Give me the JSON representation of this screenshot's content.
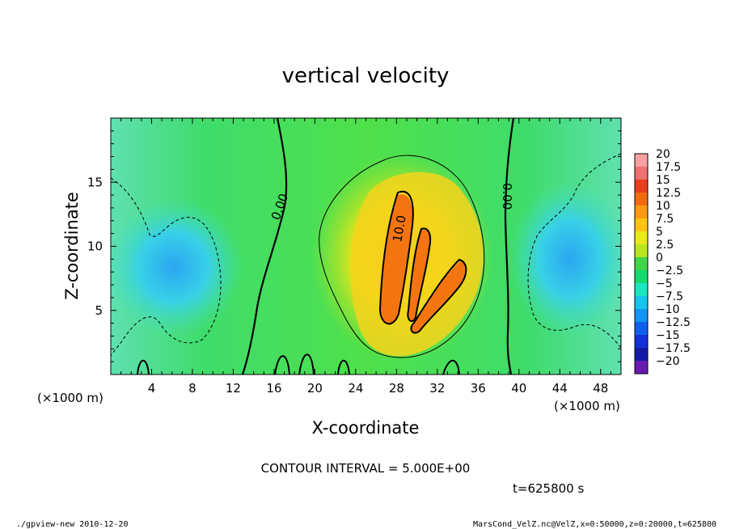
{
  "chart_data": {
    "type": "heatmap",
    "title": "vertical velocity",
    "xlabel": "X-coordinate",
    "ylabel": "Z-coordinate",
    "x_unit": "(×1000 m)",
    "y_unit": "(×1000 m)",
    "xlim": [
      0,
      50
    ],
    "ylim": [
      0,
      20
    ],
    "x_ticks": [
      "4",
      "8",
      "12",
      "16",
      "20",
      "24",
      "28",
      "32",
      "36",
      "40",
      "44",
      "48"
    ],
    "y_ticks": [
      "5",
      "10",
      "15"
    ],
    "colorbar": {
      "labels": [
        "20",
        "17.5",
        "15",
        "12.5",
        "10",
        "7.5",
        "5",
        "2.5",
        "0",
        "-2.5",
        "-5",
        "-7.5",
        "-10",
        "-12.5",
        "-15",
        "-17.5",
        "-20"
      ],
      "colors": [
        "#f9a0a0",
        "#f07070",
        "#ec3c1e",
        "#f46a10",
        "#fb9a10",
        "#fdc410",
        "#eaea18",
        "#b8e81c",
        "#3fd64a",
        "#12dc6e",
        "#18e8c0",
        "#12c6ee",
        "#1296f4",
        "#125ef0",
        "#1230dc",
        "#121aa8",
        "#6a1ab0"
      ]
    },
    "contour_labels": [
      {
        "x": 16.5,
        "y": 12.2,
        "text": "0.00"
      },
      {
        "x": 27.8,
        "y": 11.3,
        "text": "10.0"
      },
      {
        "x": 38.6,
        "y": 13.5,
        "text": "0.00"
      }
    ],
    "contour_interval": "CONTOUR INTERVAL = 5.000E+00",
    "time": "t=625800 s",
    "footer_left": "./gpview-new 2010-12-20",
    "footer_right": "MarsCond_VelZ.nc@VelZ,x=0:50000,z=0:20000,t=625800"
  }
}
